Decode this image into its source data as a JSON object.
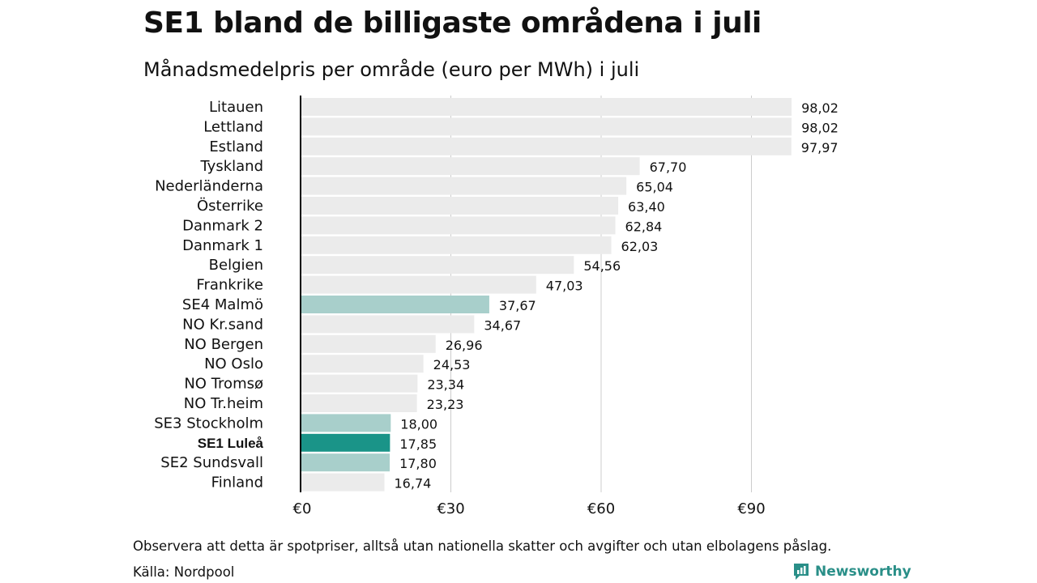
{
  "header": {
    "title": "SE1 bland de billigaste områdena i juli",
    "subtitle": "Månadsmedelpris per område (euro per MWh) i juli"
  },
  "footer": {
    "note": "Observera att detta är spotpriser, alltså utan nationella skatter och avgifter och utan elbolagens påslag.",
    "source": "Källa: Nordpool",
    "brand": "Newsworthy"
  },
  "colors": {
    "default_bar": "#ebebeb",
    "swedish_bar": "#a8cfcb",
    "highlight_bar": "#1a9488",
    "axis": "#000000",
    "grid": "#cccccc",
    "brand": "#2a8f88"
  },
  "chart_data": {
    "type": "bar",
    "orientation": "horizontal",
    "title": "SE1 bland de billigaste områdena i juli",
    "subtitle": "Månadsmedelpris per område (euro per MWh) i juli",
    "xlabel": "",
    "ylabel": "",
    "xlim": [
      0,
      100
    ],
    "xticks": [
      0,
      30,
      60,
      90
    ],
    "xtick_labels": [
      "€0",
      "€30",
      "€60",
      "€90"
    ],
    "grid": true,
    "categories": [
      "Litauen",
      "Lettland",
      "Estland",
      "Tyskland",
      "Nederländerna",
      "Österrike",
      "Danmark  2",
      "Danmark  1",
      "Belgien",
      "Frankrike",
      "SE4  Malmö",
      "NO Kr.sand",
      "NO Bergen",
      "NO Oslo",
      "NO Tromsø",
      "NO Tr.heim",
      "SE3  Stockholm",
      "SE1 Luleå",
      "SE2  Sundsvall",
      "Finland"
    ],
    "values": [
      98.02,
      98.02,
      97.97,
      67.7,
      65.04,
      63.4,
      62.84,
      62.03,
      54.56,
      47.03,
      37.67,
      34.67,
      26.96,
      24.53,
      23.34,
      23.23,
      18.0,
      17.85,
      17.8,
      16.74
    ],
    "value_labels": [
      "98,02",
      "98,02",
      "97,97",
      "67,70",
      "65,04",
      "63,40",
      "62,84",
      "62,03",
      "54,56",
      "47,03",
      "37,67",
      "34,67",
      "26,96",
      "24,53",
      "23,34",
      "23,23",
      "18,00",
      "17,85",
      "17,80",
      "16,74"
    ],
    "groups": [
      "other",
      "other",
      "other",
      "other",
      "other",
      "other",
      "other",
      "other",
      "other",
      "other",
      "swedish",
      "other",
      "other",
      "other",
      "other",
      "other",
      "swedish",
      "highlight",
      "swedish",
      "other"
    ]
  }
}
